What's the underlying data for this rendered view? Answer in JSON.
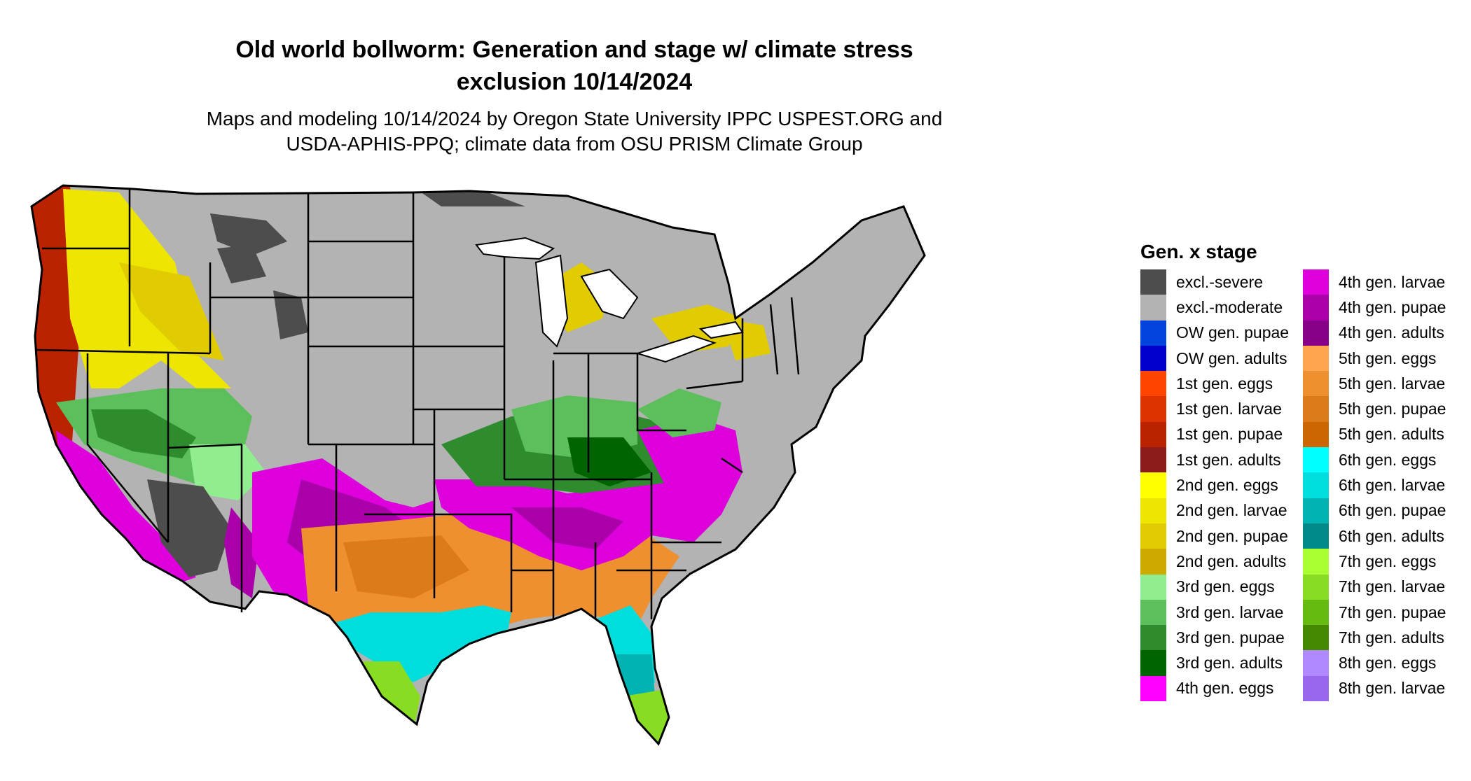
{
  "title_line1": "Old world bollworm: Generation and stage w/ climate stress",
  "title_line2": "exclusion 10/14/2024",
  "subtitle_line1": "Maps and modeling 10/14/2024 by Oregon State University IPPC USPEST.ORG and",
  "subtitle_line2": "USDA-APHIS-PPQ; climate data from OSU PRISM Climate Group",
  "legend": {
    "title": "Gen. x stage",
    "items": [
      {
        "label": "excl.-severe",
        "color": "#4d4d4d"
      },
      {
        "label": "excl.-moderate",
        "color": "#b3b3b3"
      },
      {
        "label": "OW gen. pupae",
        "color": "#0044dd"
      },
      {
        "label": "OW gen. adults",
        "color": "#0000cc"
      },
      {
        "label": "1st gen. eggs",
        "color": "#ff4400"
      },
      {
        "label": "1st gen. larvae",
        "color": "#dd3300"
      },
      {
        "label": "1st gen. pupae",
        "color": "#bb2200"
      },
      {
        "label": "1st gen. adults",
        "color": "#8b1a1a"
      },
      {
        "label": "2nd gen. eggs",
        "color": "#ffff00"
      },
      {
        "label": "2nd gen. larvae",
        "color": "#eee600"
      },
      {
        "label": "2nd gen. pupae",
        "color": "#e0cc00"
      },
      {
        "label": "2nd gen. adults",
        "color": "#ccaa00"
      },
      {
        "label": "3rd gen. eggs",
        "color": "#90ee90"
      },
      {
        "label": "3rd gen. larvae",
        "color": "#5cbf5c"
      },
      {
        "label": "3rd gen. pupae",
        "color": "#2e8b2e"
      },
      {
        "label": "3rd gen. adults",
        "color": "#006400"
      },
      {
        "label": "4th gen. eggs",
        "color": "#ff00ff"
      },
      {
        "label": "4th gen. larvae",
        "color": "#dd00dd"
      },
      {
        "label": "4th gen. pupae",
        "color": "#aa00aa"
      },
      {
        "label": "4th gen. adults",
        "color": "#880088"
      },
      {
        "label": "5th gen. eggs",
        "color": "#ffa54f"
      },
      {
        "label": "5th gen. larvae",
        "color": "#ee9030"
      },
      {
        "label": "5th gen. pupae",
        "color": "#dd7a1a"
      },
      {
        "label": "5th gen. adults",
        "color": "#cc6600"
      },
      {
        "label": "6th gen. eggs",
        "color": "#00ffff"
      },
      {
        "label": "6th gen. larvae",
        "color": "#00dddd"
      },
      {
        "label": "6th gen. pupae",
        "color": "#00b3b3"
      },
      {
        "label": "6th gen. adults",
        "color": "#008b8b"
      },
      {
        "label": "7th gen. eggs",
        "color": "#aaff33"
      },
      {
        "label": "7th gen. larvae",
        "color": "#88dd22"
      },
      {
        "label": "7th gen. pupae",
        "color": "#66bb11"
      },
      {
        "label": "7th gen. adults",
        "color": "#448800"
      },
      {
        "label": "8th gen. eggs",
        "color": "#b088ff"
      },
      {
        "label": "8th gen. larvae",
        "color": "#9966ee"
      }
    ]
  }
}
